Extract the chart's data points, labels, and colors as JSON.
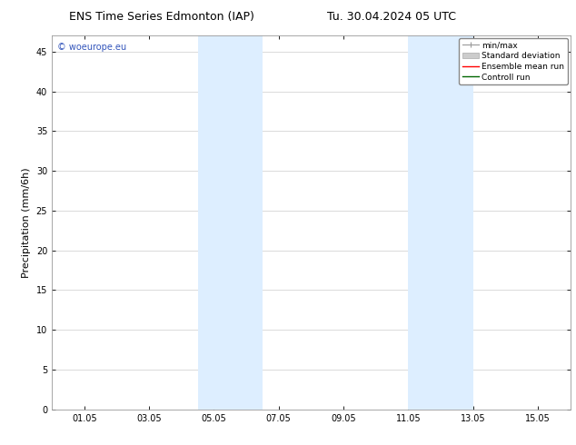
{
  "title_left": "ENS Time Series Edmonton (IAP)",
  "title_right": "Tu. 30.04.2024 05 UTC",
  "ylabel": "Precipitation (mm/6h)",
  "ylim": [
    0,
    47
  ],
  "yticks": [
    0,
    5,
    10,
    15,
    20,
    25,
    30,
    35,
    40,
    45
  ],
  "xtick_labels": [
    "01.05",
    "03.05",
    "05.05",
    "07.05",
    "09.05",
    "11.05",
    "13.05",
    "15.05"
  ],
  "xtick_positions": [
    1,
    3,
    5,
    7,
    9,
    11,
    13,
    15
  ],
  "xlim": [
    0,
    16
  ],
  "shaded_bands": [
    {
      "xmin": 4.5,
      "xmax": 6.5,
      "color": "#ddeeff"
    },
    {
      "xmin": 11.0,
      "xmax": 13.0,
      "color": "#ddeeff"
    }
  ],
  "background_color": "#ffffff",
  "plot_bg_color": "#ffffff",
  "watermark_text": "© woeurope.eu",
  "watermark_color": "#3355bb",
  "legend_entries": [
    {
      "label": "min/max",
      "color": "#999999",
      "type": "minmax"
    },
    {
      "label": "Standard deviation",
      "color": "#cccccc",
      "type": "stddev"
    },
    {
      "label": "Ensemble mean run",
      "color": "#ff0000",
      "type": "line"
    },
    {
      "label": "Controll run",
      "color": "#006600",
      "type": "line"
    }
  ],
  "title_fontsize": 9,
  "axis_fontsize": 8,
  "tick_fontsize": 7,
  "legend_fontsize": 6.5,
  "watermark_fontsize": 7,
  "grid_color": "#cccccc"
}
